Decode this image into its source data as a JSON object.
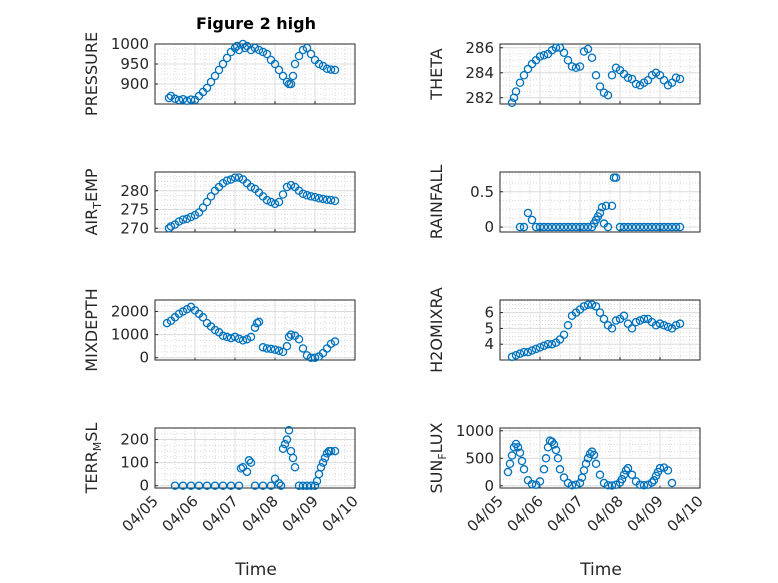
{
  "figure": {
    "title": "Figure 2 high",
    "xlabel": "Time",
    "x_tick_labels": [
      "04/05",
      "04/06",
      "04/07",
      "04/08",
      "04/09",
      "04/10"
    ],
    "x_tick_values": [
      5,
      6,
      7,
      8,
      9,
      10
    ],
    "marker_color": "#0072BD",
    "grid": "on",
    "marker": "circle"
  },
  "chart_data": [
    {
      "type": "scatter",
      "ylabel": "PRESSURE",
      "title": "Figure 2 high",
      "xlim": [
        5,
        10
      ],
      "ylim": [
        850,
        1000
      ],
      "yticks": [
        900,
        950,
        1000
      ],
      "x": [
        5.35,
        5.4,
        5.5,
        5.6,
        5.7,
        5.8,
        5.9,
        6.0,
        6.1,
        6.2,
        6.3,
        6.4,
        6.5,
        6.6,
        6.7,
        6.8,
        6.9,
        7.0,
        7.05,
        7.1,
        7.2,
        7.25,
        7.3,
        7.4,
        7.5,
        7.6,
        7.7,
        7.8,
        7.9,
        8.0,
        8.1,
        8.2,
        8.3,
        8.35,
        8.4,
        8.45,
        8.5,
        8.6,
        8.7,
        8.8,
        8.9,
        9.0,
        9.1,
        9.2,
        9.3,
        9.4,
        9.5
      ],
      "y": [
        865,
        870,
        863,
        860,
        862,
        858,
        861,
        860,
        870,
        880,
        890,
        905,
        920,
        935,
        950,
        965,
        980,
        990,
        995,
        985,
        1000,
        990,
        995,
        985,
        990,
        985,
        980,
        975,
        960,
        950,
        935,
        920,
        905,
        900,
        900,
        920,
        950,
        970,
        985,
        990,
        975,
        960,
        950,
        945,
        938,
        936,
        935
      ]
    },
    {
      "type": "scatter",
      "ylabel": "THETA",
      "xlim": [
        5,
        10
      ],
      "ylim": [
        281.5,
        286.3
      ],
      "yticks": [
        282,
        284,
        286
      ],
      "x": [
        5.3,
        5.35,
        5.4,
        5.5,
        5.6,
        5.7,
        5.8,
        5.9,
        6.0,
        6.1,
        6.2,
        6.3,
        6.4,
        6.5,
        6.6,
        6.7,
        6.8,
        6.9,
        7.0,
        7.1,
        7.2,
        7.3,
        7.4,
        7.5,
        7.6,
        7.7,
        7.8,
        7.9,
        8.0,
        8.1,
        8.2,
        8.3,
        8.4,
        8.5,
        8.6,
        8.7,
        8.8,
        8.9,
        9.0,
        9.1,
        9.2,
        9.3,
        9.4,
        9.5
      ],
      "y": [
        281.6,
        282.0,
        282.5,
        283.2,
        283.8,
        284.3,
        284.7,
        285.0,
        285.3,
        285.4,
        285.5,
        285.8,
        286.0,
        286.0,
        285.6,
        285.0,
        284.5,
        284.4,
        284.5,
        285.7,
        285.9,
        285.2,
        283.8,
        282.9,
        282.4,
        282.2,
        283.8,
        284.4,
        284.2,
        283.9,
        283.6,
        283.5,
        283.1,
        283.0,
        283.2,
        283.4,
        283.8,
        284.0,
        283.8,
        283.4,
        283.0,
        283.2,
        283.6,
        283.5
      ]
    },
    {
      "type": "scatter",
      "ylabel": "AIR_TEMP",
      "xlim": [
        5,
        10
      ],
      "ylim": [
        269,
        285
      ],
      "yticks": [
        270,
        275,
        280
      ],
      "x": [
        5.35,
        5.4,
        5.5,
        5.6,
        5.7,
        5.8,
        5.9,
        6.0,
        6.1,
        6.2,
        6.3,
        6.4,
        6.5,
        6.6,
        6.7,
        6.8,
        6.9,
        7.0,
        7.1,
        7.2,
        7.3,
        7.4,
        7.5,
        7.6,
        7.7,
        7.8,
        7.9,
        8.0,
        8.1,
        8.2,
        8.3,
        8.4,
        8.5,
        8.6,
        8.7,
        8.8,
        8.9,
        9.0,
        9.1,
        9.2,
        9.3,
        9.4,
        9.5
      ],
      "y": [
        270,
        270.5,
        271,
        271.8,
        272.3,
        272.5,
        273,
        273.5,
        274.2,
        275.5,
        277,
        278.5,
        280,
        281,
        282,
        282.7,
        283,
        283.5,
        283.5,
        283,
        282,
        281,
        280.5,
        279.5,
        278.5,
        277.5,
        277,
        276.5,
        277,
        279,
        281,
        281.5,
        281,
        280,
        279.2,
        278.8,
        278.5,
        278.3,
        278,
        277.8,
        277.6,
        277.5,
        277.3
      ]
    },
    {
      "type": "scatter",
      "ylabel": "RAINFALL",
      "xlim": [
        5,
        10
      ],
      "ylim": [
        -0.07,
        0.78
      ],
      "yticks": [
        0,
        0.5
      ],
      "x": [
        5.5,
        5.6,
        5.7,
        5.8,
        5.9,
        6.0,
        6.1,
        6.2,
        6.3,
        6.4,
        6.5,
        6.6,
        6.7,
        6.8,
        6.9,
        7.0,
        7.1,
        7.2,
        7.3,
        7.35,
        7.4,
        7.45,
        7.5,
        7.55,
        7.6,
        7.65,
        7.7,
        7.8,
        7.85,
        7.9,
        8.0,
        8.1,
        8.2,
        8.3,
        8.4,
        8.5,
        8.6,
        8.7,
        8.8,
        8.9,
        9.0,
        9.1,
        9.2,
        9.3,
        9.4,
        9.5
      ],
      "y": [
        0,
        0,
        0.2,
        0.1,
        0,
        0,
        0,
        0,
        0,
        0,
        0,
        0,
        0,
        0,
        0,
        0,
        0,
        0,
        0,
        0.05,
        0.1,
        0.15,
        0.2,
        0.28,
        0.05,
        0.3,
        0,
        0.3,
        0.7,
        0.7,
        0,
        0,
        0,
        0,
        0,
        0,
        0,
        0,
        0,
        0,
        0,
        0,
        0,
        0,
        0,
        0
      ]
    },
    {
      "type": "scatter",
      "ylabel": "MIXDEPTH",
      "xlim": [
        5,
        10
      ],
      "ylim": [
        -100,
        2500
      ],
      "yticks": [
        0,
        1000,
        2000
      ],
      "x": [
        5.3,
        5.4,
        5.5,
        5.6,
        5.7,
        5.8,
        5.9,
        6.0,
        6.1,
        6.2,
        6.3,
        6.4,
        6.5,
        6.6,
        6.7,
        6.8,
        6.9,
        7.0,
        7.1,
        7.2,
        7.3,
        7.4,
        7.5,
        7.55,
        7.6,
        7.7,
        7.8,
        7.9,
        8.0,
        8.1,
        8.2,
        8.3,
        8.35,
        8.4,
        8.5,
        8.6,
        8.7,
        8.8,
        8.9,
        9.0,
        9.1,
        9.2,
        9.3,
        9.4,
        9.5
      ],
      "y": [
        1500,
        1600,
        1750,
        1900,
        2000,
        2100,
        2200,
        2050,
        1900,
        1750,
        1500,
        1350,
        1200,
        1100,
        950,
        900,
        850,
        900,
        820,
        750,
        800,
        900,
        1300,
        1500,
        1550,
        450,
        400,
        380,
        350,
        300,
        250,
        500,
        900,
        1000,
        950,
        800,
        400,
        100,
        0,
        0,
        50,
        200,
        400,
        600,
        700
      ]
    },
    {
      "type": "scatter",
      "ylabel": "H2OMIXRA",
      "xlim": [
        5,
        10
      ],
      "ylim": [
        3,
        6.8
      ],
      "yticks": [
        4,
        5,
        6
      ],
      "x": [
        5.3,
        5.4,
        5.5,
        5.6,
        5.7,
        5.8,
        5.9,
        6.0,
        6.1,
        6.2,
        6.3,
        6.4,
        6.5,
        6.6,
        6.7,
        6.8,
        6.9,
        7.0,
        7.1,
        7.2,
        7.3,
        7.4,
        7.5,
        7.6,
        7.7,
        7.8,
        7.9,
        8.0,
        8.1,
        8.2,
        8.3,
        8.4,
        8.5,
        8.6,
        8.7,
        8.8,
        8.9,
        9.0,
        9.1,
        9.2,
        9.3,
        9.4,
        9.5
      ],
      "y": [
        3.2,
        3.3,
        3.4,
        3.5,
        3.5,
        3.6,
        3.7,
        3.8,
        3.9,
        4.0,
        4.0,
        4.1,
        4.3,
        4.6,
        5.2,
        5.8,
        6.0,
        6.2,
        6.4,
        6.5,
        6.5,
        6.4,
        6.0,
        5.6,
        5.2,
        5.0,
        5.5,
        5.6,
        5.8,
        5.3,
        5.0,
        5.4,
        5.5,
        5.6,
        5.6,
        5.4,
        5.2,
        5.3,
        5.2,
        5.1,
        5.0,
        5.2,
        5.3
      ]
    },
    {
      "type": "scatter",
      "ylabel": "TERR_MSL",
      "xlim": [
        5,
        10
      ],
      "ylim": [
        -10,
        250
      ],
      "yticks": [
        0,
        100,
        200
      ],
      "x": [
        5.5,
        5.7,
        5.9,
        6.1,
        6.3,
        6.5,
        6.7,
        6.9,
        7.1,
        7.15,
        7.2,
        7.3,
        7.35,
        7.4,
        7.5,
        7.7,
        7.9,
        8.0,
        8.1,
        8.15,
        8.2,
        8.25,
        8.3,
        8.35,
        8.4,
        8.45,
        8.5,
        8.6,
        8.7,
        8.8,
        8.9,
        9.0,
        9.05,
        9.1,
        9.15,
        9.2,
        9.25,
        9.3,
        9.35,
        9.4,
        9.5
      ],
      "y": [
        0,
        0,
        0,
        0,
        0,
        0,
        0,
        0,
        0,
        75,
        80,
        60,
        110,
        100,
        0,
        0,
        0,
        30,
        10,
        0,
        160,
        180,
        200,
        240,
        150,
        120,
        80,
        0,
        0,
        0,
        0,
        0,
        20,
        50,
        80,
        100,
        120,
        140,
        150,
        150,
        150
      ]
    },
    {
      "type": "scatter",
      "ylabel": "SUN_FLUX",
      "xlim": [
        5,
        10
      ],
      "ylim": [
        -40,
        1050
      ],
      "yticks": [
        0,
        500,
        1000
      ],
      "x": [
        5.2,
        5.25,
        5.3,
        5.35,
        5.4,
        5.45,
        5.5,
        5.55,
        5.6,
        5.7,
        5.8,
        5.9,
        6.0,
        6.1,
        6.15,
        6.2,
        6.25,
        6.3,
        6.35,
        6.4,
        6.45,
        6.5,
        6.6,
        6.7,
        6.8,
        6.9,
        7.0,
        7.05,
        7.1,
        7.15,
        7.2,
        7.25,
        7.3,
        7.35,
        7.4,
        7.5,
        7.6,
        7.7,
        7.8,
        7.9,
        8.0,
        8.05,
        8.1,
        8.15,
        8.2,
        8.3,
        8.4,
        8.5,
        8.6,
        8.7,
        8.8,
        8.85,
        8.9,
        8.95,
        9.0,
        9.1,
        9.2,
        9.3
      ],
      "y": [
        250,
        400,
        550,
        700,
        760,
        700,
        600,
        450,
        300,
        100,
        30,
        20,
        80,
        300,
        500,
        700,
        820,
        800,
        750,
        650,
        500,
        300,
        150,
        50,
        10,
        20,
        50,
        150,
        280,
        400,
        500,
        580,
        620,
        560,
        400,
        200,
        50,
        10,
        5,
        20,
        60,
        120,
        200,
        280,
        320,
        200,
        80,
        20,
        10,
        20,
        60,
        100,
        180,
        250,
        320,
        330,
        280,
        50
      ]
    }
  ]
}
